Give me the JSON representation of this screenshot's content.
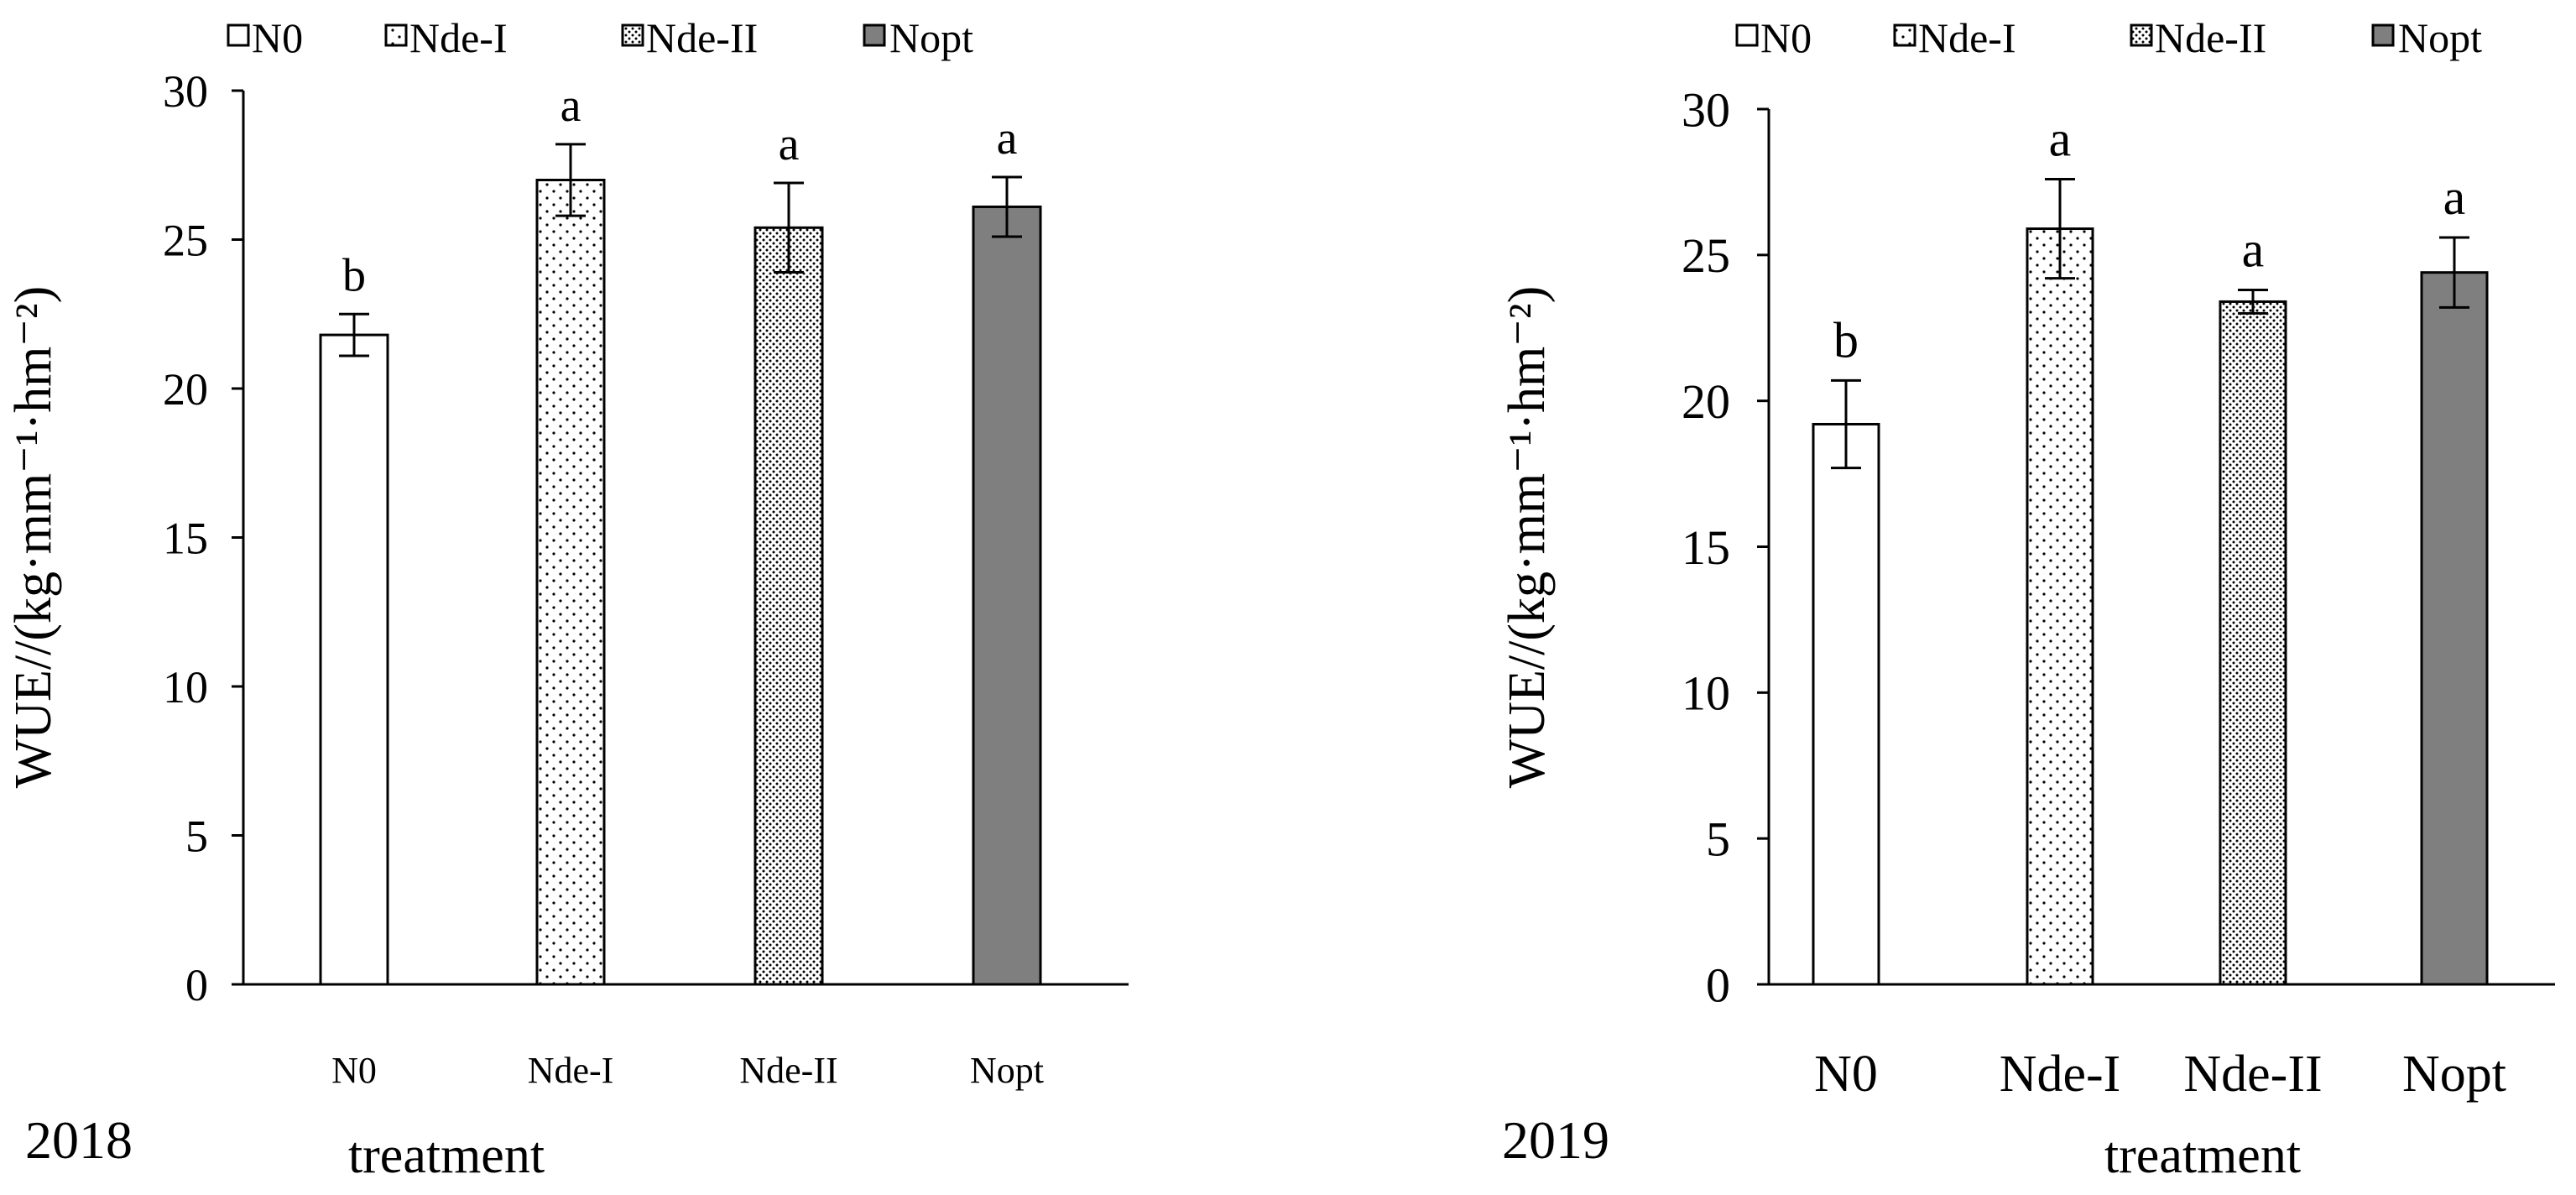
{
  "colors": {
    "axis": "#000000",
    "nopt_fill": "#7f7f7f",
    "bar_stroke": "#000000",
    "background": "#ffffff"
  },
  "legend": [
    {
      "label": "N0",
      "pattern": "white"
    },
    {
      "label": "Nde-I",
      "pattern": "sparse-dots"
    },
    {
      "label": "Nde-II",
      "pattern": "dense-dots"
    },
    {
      "label": "Nopt",
      "pattern": "gray"
    }
  ],
  "chart_data": [
    {
      "type": "bar",
      "year_label": "2018",
      "xlabel": "treatment",
      "ylabel": "WUE//(kg·mm⁻¹·hm⁻²)",
      "ylim": [
        0,
        30
      ],
      "yticks": [
        0,
        5,
        10,
        15,
        20,
        25,
        30
      ],
      "categories": [
        "N0",
        "Nde-I",
        "Nde-II",
        "Nopt"
      ],
      "values": [
        21.8,
        27.0,
        25.4,
        26.1
      ],
      "errors": [
        0.7,
        1.2,
        1.5,
        1.0
      ],
      "significance": [
        "b",
        "a",
        "a",
        "a"
      ],
      "patterns": [
        "white",
        "sparse-dots",
        "dense-dots",
        "gray"
      ],
      "legend_position": "top"
    },
    {
      "type": "bar",
      "year_label": "2019",
      "xlabel": "treatment",
      "ylabel": "WUE//(kg·mm⁻¹·hm⁻²)",
      "ylim": [
        0,
        30
      ],
      "yticks": [
        0,
        5,
        10,
        15,
        20,
        25,
        30
      ],
      "categories": [
        "N0",
        "Nde-I",
        "Nde-II",
        "Nopt"
      ],
      "values": [
        19.2,
        25.9,
        23.4,
        24.4
      ],
      "errors": [
        1.5,
        1.7,
        0.4,
        1.2
      ],
      "significance": [
        "b",
        "a",
        "a",
        "a"
      ],
      "patterns": [
        "white",
        "sparse-dots",
        "dense-dots",
        "gray"
      ],
      "legend_position": "top"
    }
  ]
}
